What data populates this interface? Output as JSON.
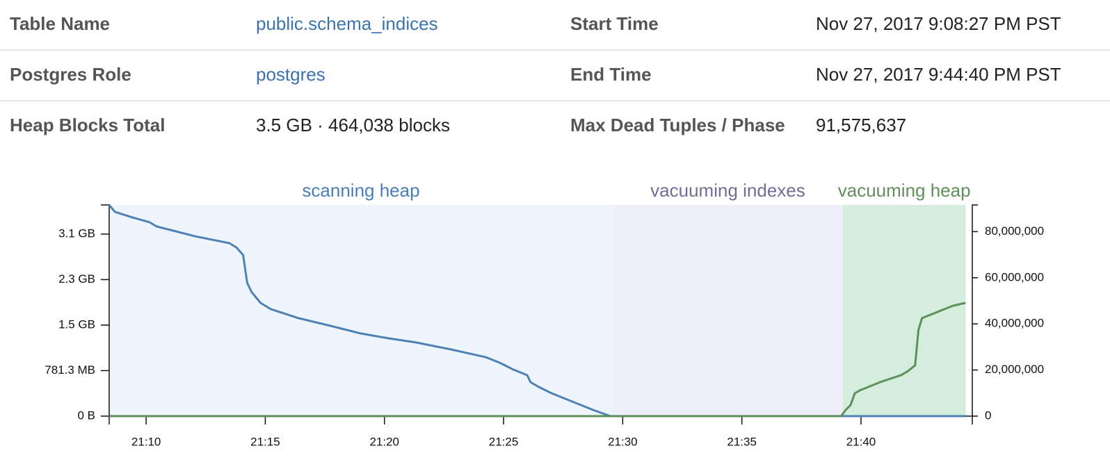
{
  "table": {
    "rows": [
      [
        "Table Name",
        "public.schema_indices",
        "Start Time",
        "Nov 27, 2017 9:08:27 PM PST"
      ],
      [
        "Postgres Role",
        "postgres",
        "End Time",
        "Nov 27, 2017 9:44:40 PM PST"
      ],
      [
        "Heap Blocks Total",
        "3.5 GB · 464,038 blocks",
        "Max Dead Tuples / Phase",
        "91,575,637"
      ]
    ]
  },
  "chart_data": {
    "type": "line",
    "xlim": [
      1268.45,
      1304.67
    ],
    "xticks": [
      {
        "value": 1270,
        "label": "21:10"
      },
      {
        "value": 1275,
        "label": "21:15"
      },
      {
        "value": 1280,
        "label": "21:20"
      },
      {
        "value": 1285,
        "label": "21:25"
      },
      {
        "value": 1290,
        "label": "21:30"
      },
      {
        "value": 1295,
        "label": "21:35"
      },
      {
        "value": 1300,
        "label": "21:40"
      }
    ],
    "ylim": [
      0,
      464038
    ],
    "yticks": [
      {
        "value": 0,
        "label": "0 B"
      },
      {
        "value": 100000,
        "label": "781.3 MB"
      },
      {
        "value": 200000,
        "label": "1.5 GB"
      },
      {
        "value": 300000,
        "label": "2.3 GB"
      },
      {
        "value": 400000,
        "label": "3.1 GB"
      }
    ],
    "y2lim": [
      0,
      91575637
    ],
    "y2ticks": [
      0,
      {
        "value": 20000000,
        "label": "20,000,000"
      },
      {
        "value": 40000000,
        "label": "40,000,000"
      },
      {
        "value": 60000000,
        "label": "60,000,000"
      },
      {
        "value": 80000000,
        "label": "80,000,000"
      }
    ],
    "phases": [
      {
        "name": "scanning heap",
        "start": 1268.45,
        "end": 1289.58,
        "color": "#4b7db6",
        "fill": "#eef5fc"
      },
      {
        "name": "vacuuming indexes",
        "start": 1289.58,
        "end": 1299.24,
        "color": "#6f6f95",
        "fill": "#efeffa"
      },
      {
        "name": "vacuuming heap",
        "start": 1299.24,
        "end": 1304.39,
        "color": "#5f8f5a",
        "fill": "#d5eddc"
      }
    ],
    "series": [
      {
        "color": "#4f80b6",
        "axis": "y",
        "x": [
          1268.45,
          1268.69,
          1269.42,
          1270.15,
          1270.44,
          1271.02,
          1272.03,
          1273.49,
          1273.78,
          1274.07,
          1274.24,
          1274.42,
          1274.8,
          1275.23,
          1276.4,
          1277.85,
          1279.01,
          1280.17,
          1281.34,
          1282.79,
          1284.24,
          1284.83,
          1285.41,
          1285.99,
          1286.13,
          1286.42,
          1287.01,
          1287.88,
          1288.75,
          1289.48,
          1304.39
        ],
        "values": [
          464038,
          448800,
          436600,
          425900,
          416700,
          409100,
          395400,
          380100,
          370900,
          354100,
          293100,
          273200,
          248800,
          235100,
          215200,
          196900,
          181600,
          171000,
          161800,
          146500,
          129700,
          117500,
          102300,
          90100,
          74800,
          65600,
          50400,
          32100,
          13700,
          0,
          0
        ]
      },
      {
        "color": "#5f8f5a",
        "axis": "y2",
        "x": [
          1268.45,
          1299.16,
          1299.36,
          1299.56,
          1299.74,
          1299.94,
          1300.38,
          1300.81,
          1301.25,
          1301.69,
          1301.98,
          1302.27,
          1302.41,
          1302.56,
          1303.0,
          1303.43,
          1303.87,
          1304.39
        ],
        "values": [
          0,
          0,
          2700000,
          4800000,
          9900000,
          11100000,
          12950000,
          14760000,
          16300000,
          17800000,
          19600000,
          22000000,
          37350000,
          42500000,
          44300000,
          46100000,
          47900000,
          49100000
        ]
      }
    ]
  }
}
